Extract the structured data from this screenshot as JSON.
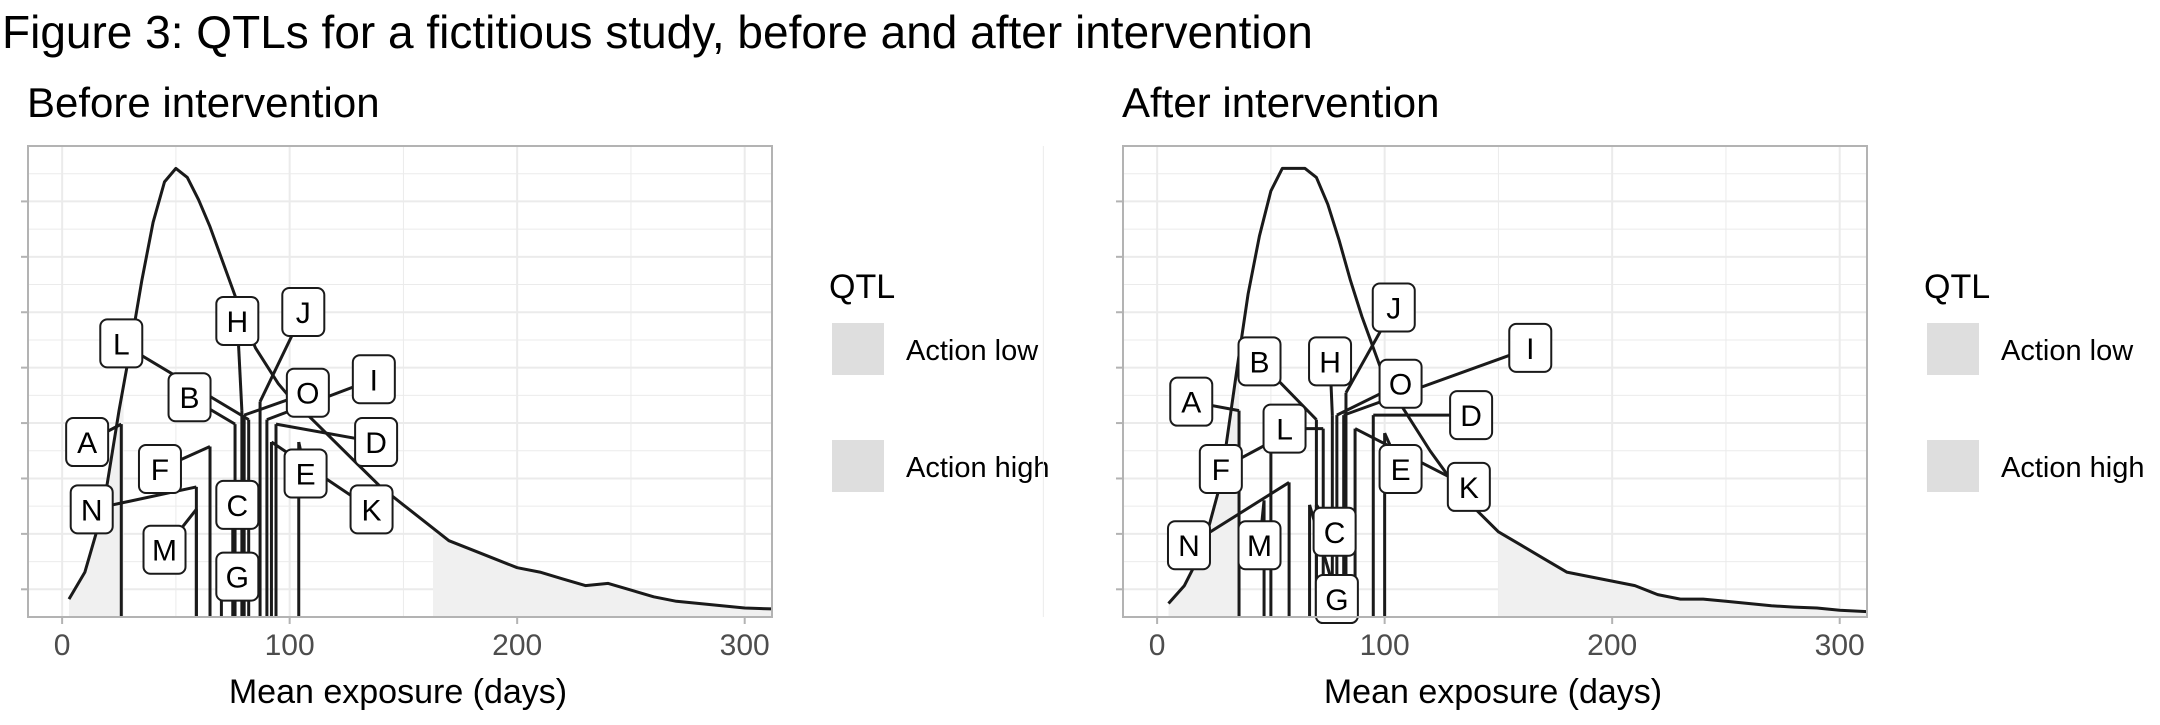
{
  "figure": {
    "title": "Figure 3: QTLs for a fictitious study, before and after intervention"
  },
  "legend": {
    "title": "QTL",
    "items": [
      {
        "label": "Action low",
        "color": "#dedede"
      },
      {
        "label": "Action high",
        "color": "#dedede"
      }
    ]
  },
  "colors": {
    "line": "#1a1a1a",
    "grid": "#ebebeb",
    "panel_border": "#b3b3b3",
    "shade": "#f0f0f0",
    "tick_text": "#4d4d4d"
  },
  "chart_data": [
    {
      "type": "line",
      "title": "Before intervention",
      "xlabel": "Mean exposure (days)",
      "ylabel": "",
      "xlim": [
        -15,
        312
      ],
      "ylim": [
        0,
        1.05
      ],
      "x_ticks": [
        0,
        100,
        200,
        300
      ],
      "y_ticks": "none",
      "grid": true,
      "density": [
        [
          3,
          0.04
        ],
        [
          10,
          0.1
        ],
        [
          18,
          0.24
        ],
        [
          25,
          0.46
        ],
        [
          30,
          0.6
        ],
        [
          35,
          0.75
        ],
        [
          40,
          0.88
        ],
        [
          45,
          0.97
        ],
        [
          50,
          1.0
        ],
        [
          55,
          0.98
        ],
        [
          60,
          0.93
        ],
        [
          65,
          0.87
        ],
        [
          70,
          0.8
        ],
        [
          75,
          0.73
        ],
        [
          80,
          0.66
        ],
        [
          85,
          0.6
        ],
        [
          90,
          0.56
        ],
        [
          95,
          0.52
        ],
        [
          100,
          0.49
        ],
        [
          110,
          0.44
        ],
        [
          120,
          0.39
        ],
        [
          130,
          0.34
        ],
        [
          140,
          0.29
        ],
        [
          150,
          0.25
        ],
        [
          160,
          0.21
        ],
        [
          170,
          0.17
        ],
        [
          180,
          0.15
        ],
        [
          190,
          0.13
        ],
        [
          200,
          0.11
        ],
        [
          210,
          0.1
        ],
        [
          220,
          0.085
        ],
        [
          230,
          0.07
        ],
        [
          240,
          0.075
        ],
        [
          250,
          0.06
        ],
        [
          260,
          0.045
        ],
        [
          270,
          0.035
        ],
        [
          280,
          0.03
        ],
        [
          290,
          0.025
        ],
        [
          300,
          0.02
        ],
        [
          312,
          0.018
        ]
      ],
      "shaded_regions": [
        {
          "band": "Action low",
          "from": 3,
          "to": 27
        },
        {
          "band": "Action high",
          "from": 163,
          "to": 312
        }
      ],
      "qtls": [
        {
          "label": "A",
          "x": 26,
          "y": 0.43,
          "label_x": 11,
          "label_y": 0.39
        },
        {
          "label": "B",
          "x": 76,
          "y": 0.43,
          "label_x": 56,
          "label_y": 0.49
        },
        {
          "label": "C",
          "x": 75,
          "y": 0.24,
          "label_x": 77,
          "label_y": 0.25
        },
        {
          "label": "D",
          "x": 94,
          "y": 0.43,
          "label_x": 138,
          "label_y": 0.39
        },
        {
          "label": "E",
          "x": 104,
          "y": 0.39,
          "label_x": 107,
          "label_y": 0.32
        },
        {
          "label": "F",
          "x": 65,
          "y": 0.38,
          "label_x": 43,
          "label_y": 0.33
        },
        {
          "label": "G",
          "x": 70,
          "y": 0.12,
          "label_x": 77,
          "label_y": 0.09
        },
        {
          "label": "H",
          "x": 79,
          "y": 0.46,
          "label_x": 77,
          "label_y": 0.66
        },
        {
          "label": "I",
          "x": 90,
          "y": 0.44,
          "label_x": 137,
          "label_y": 0.53
        },
        {
          "label": "J",
          "x": 87,
          "y": 0.48,
          "label_x": 106,
          "label_y": 0.68
        },
        {
          "label": "K",
          "x": 92,
          "y": 0.39,
          "label_x": 136,
          "label_y": 0.24
        },
        {
          "label": "L",
          "x": 82,
          "y": 0.44,
          "label_x": 26,
          "label_y": 0.61
        },
        {
          "label": "M",
          "x": 59,
          "y": 0.24,
          "label_x": 45,
          "label_y": 0.15
        },
        {
          "label": "N",
          "x": 59,
          "y": 0.29,
          "label_x": 13,
          "label_y": 0.24
        },
        {
          "label": "O",
          "x": 80,
          "y": 0.45,
          "label_x": 108,
          "label_y": 0.5
        }
      ]
    },
    {
      "type": "line",
      "title": "After intervention",
      "xlabel": "Mean exposure (days)",
      "ylabel": "",
      "xlim": [
        -15,
        312
      ],
      "ylim": [
        0,
        1.05
      ],
      "x_ticks": [
        0,
        100,
        200,
        300
      ],
      "y_ticks": "none",
      "grid": true,
      "density": [
        [
          5,
          0.03
        ],
        [
          12,
          0.07
        ],
        [
          20,
          0.15
        ],
        [
          28,
          0.3
        ],
        [
          35,
          0.55
        ],
        [
          40,
          0.72
        ],
        [
          45,
          0.85
        ],
        [
          50,
          0.95
        ],
        [
          55,
          1.0
        ],
        [
          60,
          1.0
        ],
        [
          65,
          1.0
        ],
        [
          70,
          0.98
        ],
        [
          75,
          0.92
        ],
        [
          80,
          0.84
        ],
        [
          85,
          0.75
        ],
        [
          90,
          0.67
        ],
        [
          95,
          0.6
        ],
        [
          100,
          0.53
        ],
        [
          110,
          0.45
        ],
        [
          120,
          0.37
        ],
        [
          130,
          0.3
        ],
        [
          140,
          0.24
        ],
        [
          150,
          0.19
        ],
        [
          160,
          0.16
        ],
        [
          170,
          0.13
        ],
        [
          180,
          0.1
        ],
        [
          190,
          0.09
        ],
        [
          200,
          0.08
        ],
        [
          210,
          0.07
        ],
        [
          220,
          0.05
        ],
        [
          230,
          0.04
        ],
        [
          240,
          0.04
        ],
        [
          250,
          0.035
        ],
        [
          260,
          0.03
        ],
        [
          270,
          0.025
        ],
        [
          280,
          0.022
        ],
        [
          290,
          0.02
        ],
        [
          300,
          0.015
        ],
        [
          312,
          0.012
        ]
      ],
      "shaded_regions": [
        {
          "band": "Action low",
          "from": 5,
          "to": 36
        },
        {
          "band": "Action high",
          "from": 150,
          "to": 312
        }
      ],
      "qtls": [
        {
          "label": "A",
          "x": 36,
          "y": 0.46,
          "label_x": 15,
          "label_y": 0.48
        },
        {
          "label": "B",
          "x": 70,
          "y": 0.44,
          "label_x": 45,
          "label_y": 0.57
        },
        {
          "label": "C",
          "x": 70,
          "y": 0.25,
          "label_x": 78,
          "label_y": 0.19
        },
        {
          "label": "D",
          "x": 95,
          "y": 0.45,
          "label_x": 138,
          "label_y": 0.45
        },
        {
          "label": "E",
          "x": 100,
          "y": 0.41,
          "label_x": 107,
          "label_y": 0.33
        },
        {
          "label": "F",
          "x": 50,
          "y": 0.39,
          "label_x": 28,
          "label_y": 0.33
        },
        {
          "label": "G",
          "x": 67,
          "y": 0.25,
          "label_x": 79,
          "label_y": 0.04
        },
        {
          "label": "H",
          "x": 77,
          "y": 0.45,
          "label_x": 76,
          "label_y": 0.57
        },
        {
          "label": "I",
          "x": 82,
          "y": 0.45,
          "label_x": 164,
          "label_y": 0.6
        },
        {
          "label": "J",
          "x": 83,
          "y": 0.5,
          "label_x": 104,
          "label_y": 0.69
        },
        {
          "label": "K",
          "x": 87,
          "y": 0.42,
          "label_x": 137,
          "label_y": 0.29
        },
        {
          "label": "L",
          "x": 73,
          "y": 0.42,
          "label_x": 56,
          "label_y": 0.42
        },
        {
          "label": "M",
          "x": 47,
          "y": 0.26,
          "label_x": 45,
          "label_y": 0.16
        },
        {
          "label": "N",
          "x": 58,
          "y": 0.3,
          "label_x": 14,
          "label_y": 0.16
        },
        {
          "label": "O",
          "x": 79,
          "y": 0.45,
          "label_x": 107,
          "label_y": 0.52
        }
      ]
    }
  ]
}
